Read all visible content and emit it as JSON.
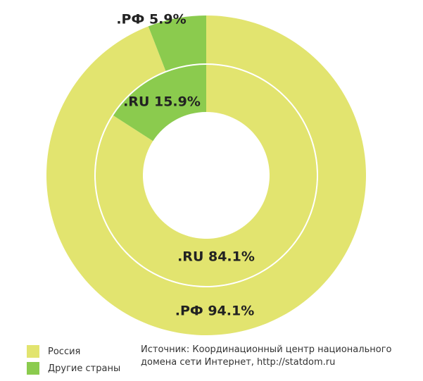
{
  "chart_data": {
    "type": "nested-donut",
    "categories": [
      "Россия",
      "Другие страны"
    ],
    "colors": [
      "#e2e46f",
      "#8bcb4e"
    ],
    "series": [
      {
        "values": [
          94.1,
          5.9
        ],
        "value_labels": [
          ".РФ 94.1%",
          ".РФ 5.9%"
        ]
      },
      {
        "values": [
          84.1,
          15.9
        ],
        "value_labels": [
          ".RU 84.1%",
          ".RU 15.9%"
        ]
      }
    ],
    "source": "Источник: Координационный центр национального домена сети Интернет, http://statdom.ru"
  }
}
